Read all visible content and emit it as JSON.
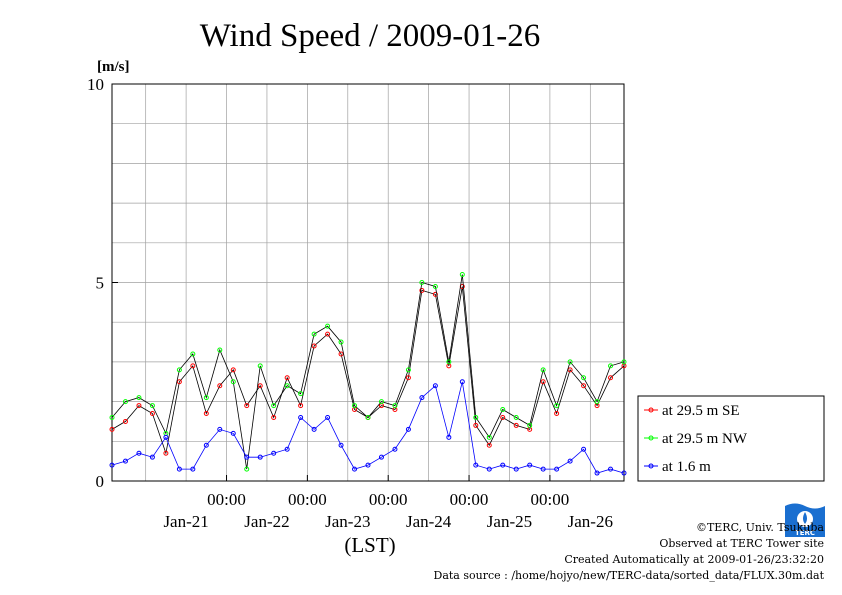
{
  "chart_data": {
    "type": "line",
    "title": "Wind Speed / 2009-01-26",
    "ylabel": "[m/s]",
    "xlabel": "(LST)",
    "ylim": [
      0,
      10
    ],
    "yticks": [
      "0",
      "5",
      "10"
    ],
    "ygrid_step": 1,
    "xlim": [
      "2009-01-20 14:00",
      "2009-01-26 22:00"
    ],
    "time_ticks": [
      "00:00",
      "00:00",
      "00:00",
      "00:00",
      "00:00"
    ],
    "day_labels": [
      "Jan-21",
      "Jan-22",
      "Jan-23",
      "Jan-24",
      "Jan-25",
      "Jan-26"
    ],
    "grid": true,
    "legend_position": "right",
    "series": [
      {
        "name": "at 29.5 m SE",
        "color": "#ff0000",
        "x": [
          "2009-01-20 14:00",
          "2009-01-20 18:00",
          "2009-01-20 22:00",
          "2009-01-21 02:00",
          "2009-01-21 06:00",
          "2009-01-21 10:00",
          "2009-01-21 14:00",
          "2009-01-21 18:00",
          "2009-01-21 22:00",
          "2009-01-22 02:00",
          "2009-01-22 06:00",
          "2009-01-22 10:00",
          "2009-01-22 14:00",
          "2009-01-22 18:00",
          "2009-01-22 22:00",
          "2009-01-23 02:00",
          "2009-01-23 06:00",
          "2009-01-23 10:00",
          "2009-01-23 14:00",
          "2009-01-23 18:00",
          "2009-01-23 22:00",
          "2009-01-24 02:00",
          "2009-01-24 06:00",
          "2009-01-24 10:00",
          "2009-01-24 14:00",
          "2009-01-24 18:00",
          "2009-01-24 22:00",
          "2009-01-25 02:00",
          "2009-01-25 06:00",
          "2009-01-25 10:00",
          "2009-01-25 14:00",
          "2009-01-25 18:00",
          "2009-01-25 22:00",
          "2009-01-26 02:00",
          "2009-01-26 06:00",
          "2009-01-26 10:00",
          "2009-01-26 14:00",
          "2009-01-26 18:00",
          "2009-01-26 22:00"
        ],
        "y": [
          1.3,
          1.5,
          1.9,
          1.7,
          0.7,
          2.5,
          2.9,
          1.7,
          2.4,
          2.8,
          1.9,
          2.4,
          1.6,
          2.6,
          1.9,
          3.4,
          3.7,
          3.2,
          1.8,
          1.6,
          1.9,
          1.8,
          2.6,
          4.8,
          4.7,
          2.9,
          4.9,
          1.4,
          0.9,
          1.6,
          1.4,
          1.3,
          2.5,
          1.7,
          2.8,
          2.4,
          1.9,
          2.6,
          2.9
        ]
      },
      {
        "name": "at 29.5 m NW",
        "color": "#00ff00",
        "x": [
          "2009-01-20 14:00",
          "2009-01-20 18:00",
          "2009-01-20 22:00",
          "2009-01-21 02:00",
          "2009-01-21 06:00",
          "2009-01-21 10:00",
          "2009-01-21 14:00",
          "2009-01-21 18:00",
          "2009-01-21 22:00",
          "2009-01-22 02:00",
          "2009-01-22 06:00",
          "2009-01-22 10:00",
          "2009-01-22 14:00",
          "2009-01-22 18:00",
          "2009-01-22 22:00",
          "2009-01-23 02:00",
          "2009-01-23 06:00",
          "2009-01-23 10:00",
          "2009-01-23 14:00",
          "2009-01-23 18:00",
          "2009-01-23 22:00",
          "2009-01-24 02:00",
          "2009-01-24 06:00",
          "2009-01-24 10:00",
          "2009-01-24 14:00",
          "2009-01-24 18:00",
          "2009-01-24 22:00",
          "2009-01-25 02:00",
          "2009-01-25 06:00",
          "2009-01-25 10:00",
          "2009-01-25 14:00",
          "2009-01-25 18:00",
          "2009-01-25 22:00",
          "2009-01-26 02:00",
          "2009-01-26 06:00",
          "2009-01-26 10:00",
          "2009-01-26 14:00",
          "2009-01-26 18:00",
          "2009-01-26 22:00"
        ],
        "y": [
          1.6,
          2.0,
          2.1,
          1.9,
          1.2,
          2.8,
          3.2,
          2.1,
          3.3,
          2.5,
          0.3,
          2.9,
          1.9,
          2.4,
          2.2,
          3.7,
          3.9,
          3.5,
          1.9,
          1.6,
          2.0,
          1.9,
          2.8,
          5.0,
          4.9,
          3.0,
          5.2,
          1.6,
          1.1,
          1.8,
          1.6,
          1.4,
          2.8,
          1.9,
          3.0,
          2.6,
          2.0,
          2.9,
          3.0
        ]
      },
      {
        "name": "at 1.6 m",
        "color": "#0000ff",
        "x": [
          "2009-01-20 14:00",
          "2009-01-20 18:00",
          "2009-01-20 22:00",
          "2009-01-21 02:00",
          "2009-01-21 06:00",
          "2009-01-21 10:00",
          "2009-01-21 14:00",
          "2009-01-21 18:00",
          "2009-01-21 22:00",
          "2009-01-22 02:00",
          "2009-01-22 06:00",
          "2009-01-22 10:00",
          "2009-01-22 14:00",
          "2009-01-22 18:00",
          "2009-01-22 22:00",
          "2009-01-23 02:00",
          "2009-01-23 06:00",
          "2009-01-23 10:00",
          "2009-01-23 14:00",
          "2009-01-23 18:00",
          "2009-01-23 22:00",
          "2009-01-24 02:00",
          "2009-01-24 06:00",
          "2009-01-24 10:00",
          "2009-01-24 14:00",
          "2009-01-24 18:00",
          "2009-01-24 22:00",
          "2009-01-25 02:00",
          "2009-01-25 06:00",
          "2009-01-25 10:00",
          "2009-01-25 14:00",
          "2009-01-25 18:00",
          "2009-01-25 22:00",
          "2009-01-26 02:00",
          "2009-01-26 06:00",
          "2009-01-26 10:00",
          "2009-01-26 14:00",
          "2009-01-26 18:00",
          "2009-01-26 22:00"
        ],
        "y": [
          0.4,
          0.5,
          0.7,
          0.6,
          1.1,
          0.3,
          0.3,
          0.9,
          1.3,
          1.2,
          0.6,
          0.6,
          0.7,
          0.8,
          1.6,
          1.3,
          1.6,
          0.9,
          0.3,
          0.4,
          0.6,
          0.8,
          1.3,
          2.1,
          2.4,
          1.1,
          2.5,
          0.4,
          0.3,
          0.4,
          0.3,
          0.4,
          0.3,
          0.3,
          0.5,
          0.8,
          0.2,
          0.3,
          0.2
        ]
      }
    ]
  },
  "credits": {
    "copyright": "©TERC, Univ. Tsukuba",
    "site": "Observed at TERC Tower site",
    "created": "Created Automatically at 2009-01-26/23:32:20",
    "source": "Data source : /home/hojyo/new/TERC-data/sorted_data/FLUX.30m.dat"
  },
  "logo": {
    "text": "TERC",
    "color": "#1a6fd0"
  }
}
